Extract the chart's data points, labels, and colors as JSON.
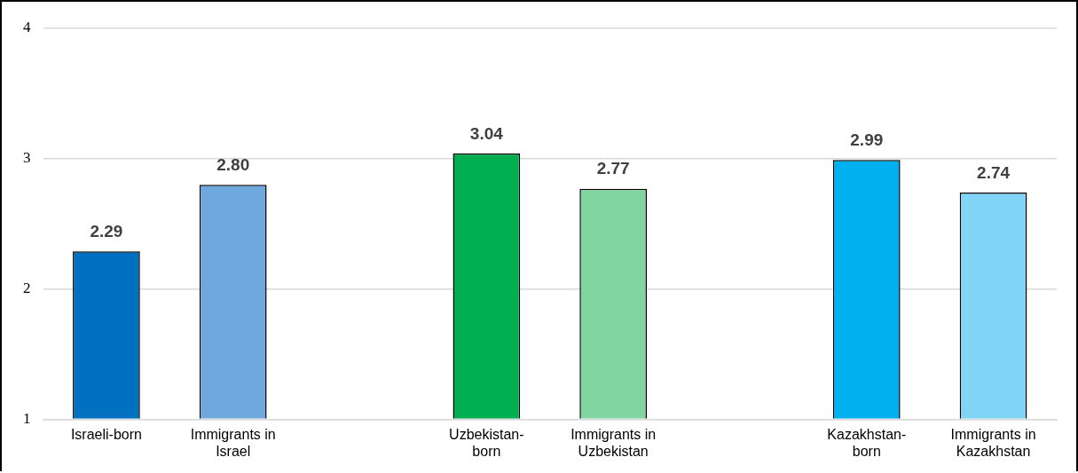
{
  "chart_data": {
    "type": "bar",
    "categories": [
      "Israeli-born",
      "Immigrants in Israel",
      null,
      "Uzbekistan-born",
      "Immigrants in Uzbekistan",
      null,
      "Kazakhstan-born",
      "Immigrants in Kazakhstan"
    ],
    "values": [
      2.29,
      2.8,
      null,
      3.04,
      2.77,
      null,
      2.99,
      2.74
    ],
    "colors": [
      "#0070c0",
      "#6fa8dc",
      null,
      "#00b050",
      "#7fd6a0",
      null,
      "#00b0f0",
      "#80d4f6"
    ],
    "value_labels": [
      "2.29",
      "2.80",
      null,
      "3.04",
      "2.77",
      null,
      "2.99",
      "2.74"
    ],
    "ylim": [
      1,
      4
    ],
    "yticks": [
      1,
      2,
      3,
      4
    ],
    "grid": "y",
    "legend": false
  }
}
